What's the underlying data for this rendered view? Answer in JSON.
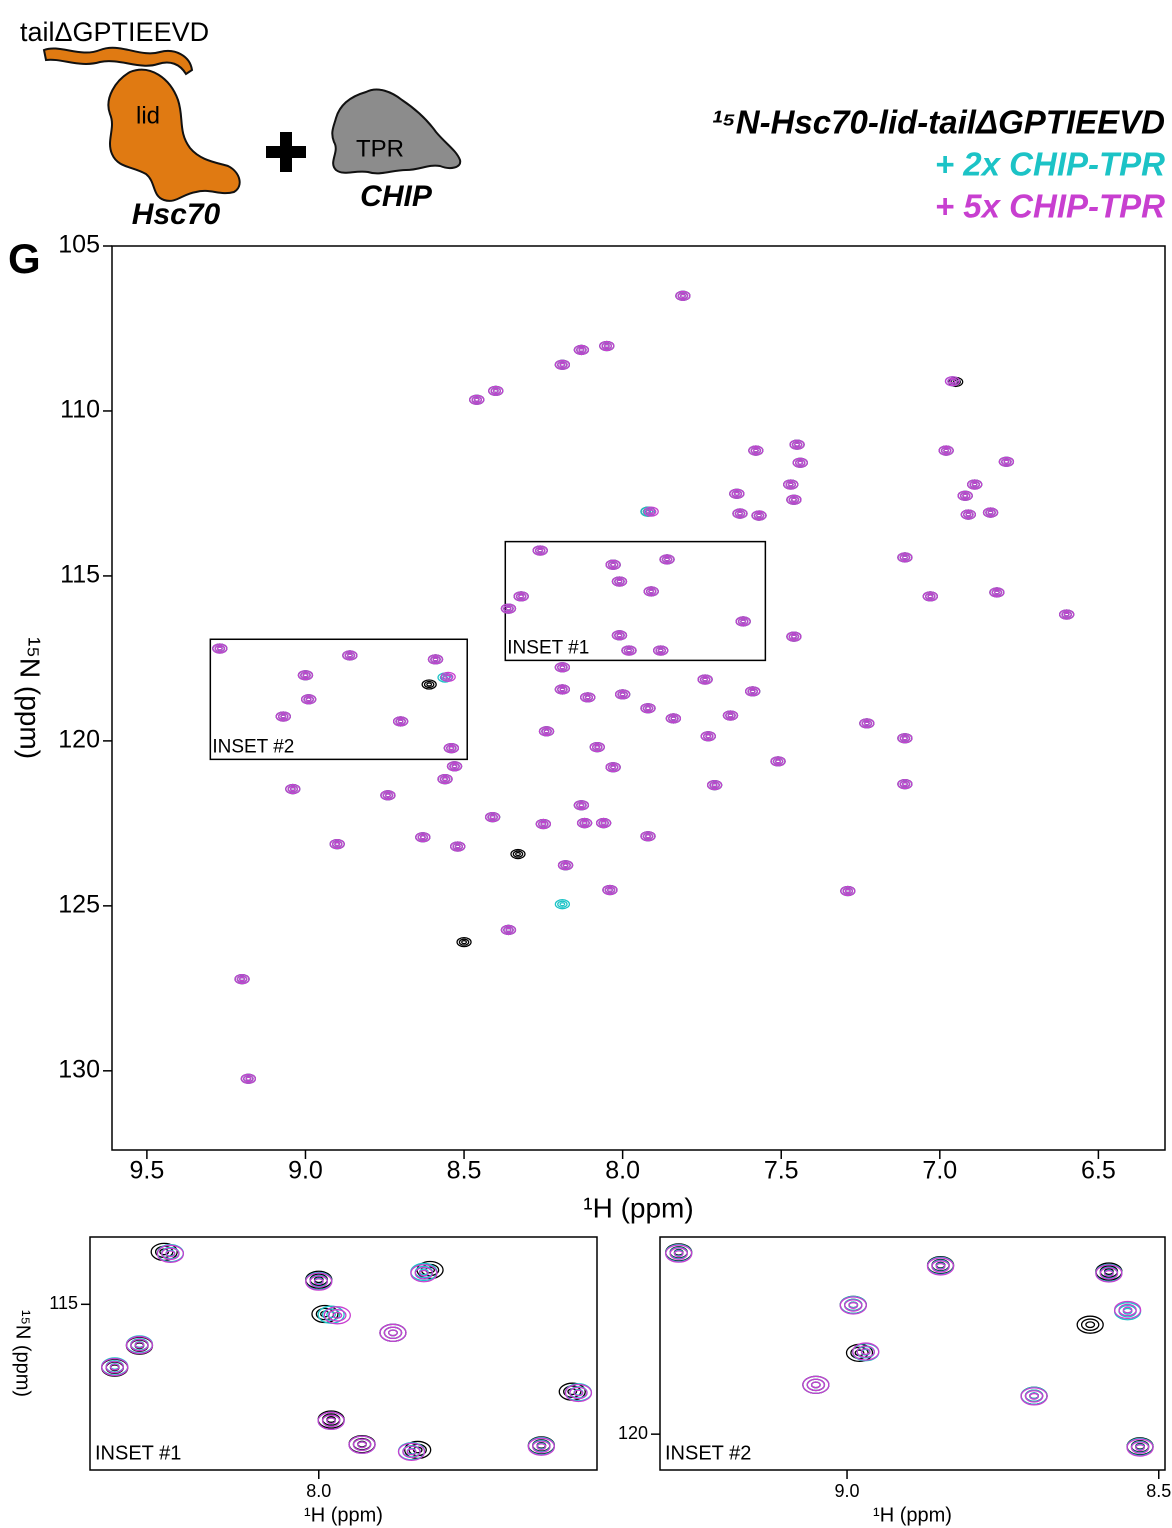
{
  "panel": "G",
  "cartoon": {
    "tail": "tailΔGPTIEEVD",
    "lid": "lid",
    "hsc70": "Hsc70",
    "tpr": "TPR",
    "chip": "CHIP"
  },
  "chart_data": [
    {
      "type": "scatter",
      "xlabel": "¹H (ppm)",
      "ylabel": "¹⁵N (ppm)",
      "legend": "upper right",
      "xlim": [
        9.61,
        6.29
      ],
      "ylim": [
        132.4,
        105
      ],
      "xticks": [
        9.5,
        {
          "value": 9,
          "label": "9.0"
        },
        8.5,
        {
          "value": 8,
          "label": "8.0"
        },
        7.5,
        {
          "value": 7,
          "label": "7.0"
        },
        6.5
      ],
      "yticks": [
        105,
        110,
        115,
        120,
        125,
        130
      ],
      "regions": [
        {
          "label": "INSET #1",
          "x": [
            8.37,
            7.55
          ],
          "y": [
            113.96,
            117.56
          ]
        },
        {
          "label": "INSET #2",
          "x": [
            9.3,
            8.49
          ],
          "y": [
            116.92,
            120.56
          ]
        }
      ],
      "series": [
        {
          "name": "¹⁵N-Hsc70-lid-tailΔGPTIEEVD",
          "color": "#000000",
          "x": [
            7.81,
            8.19,
            8.13,
            8.05,
            8.4,
            8.46,
            6.95,
            7.58,
            7.45,
            7.44,
            6.98,
            6.79,
            7.47,
            7.64,
            6.89,
            6.92,
            7.92,
            7.63,
            7.57,
            7.46,
            6.91,
            6.84,
            7.11,
            8.26,
            8.03,
            7.86,
            8.01,
            8.32,
            8.36,
            7.91,
            7.62,
            7.03,
            6.82,
            6.6,
            7.46,
            9.27,
            8.86,
            8.59,
            9.0,
            8.61,
            8.01,
            7.98,
            7.88,
            8.19,
            7.74,
            8.19,
            8.11,
            8.0,
            7.92,
            7.59,
            8.99,
            9.07,
            8.7,
            7.84,
            7.66,
            7.23,
            7.11,
            7.73,
            8.24,
            8.08,
            8.54,
            8.53,
            8.03,
            7.51,
            7.71,
            7.11,
            9.04,
            8.74,
            8.56,
            8.13,
            8.41,
            8.12,
            8.25,
            8.06,
            7.92,
            8.63,
            8.9,
            8.52,
            8.33,
            8.18,
            8.04,
            7.29,
            8.36,
            8.5,
            9.2,
            9.18
          ],
          "values": [
            106.51,
            108.6,
            108.15,
            108.03,
            109.39,
            109.66,
            109.12,
            111.2,
            111.02,
            111.57,
            111.2,
            111.54,
            112.23,
            112.51,
            112.23,
            112.57,
            113.05,
            113.11,
            113.17,
            112.69,
            113.14,
            113.08,
            114.44,
            114.23,
            114.66,
            114.5,
            115.17,
            115.62,
            115.99,
            115.47,
            116.38,
            115.62,
            115.5,
            116.17,
            116.84,
            117.2,
            117.41,
            117.53,
            118.01,
            118.29,
            116.8,
            117.26,
            117.26,
            117.77,
            118.14,
            118.44,
            118.68,
            118.59,
            119.01,
            118.5,
            118.74,
            119.26,
            119.41,
            119.32,
            119.23,
            119.47,
            119.92,
            119.86,
            119.71,
            120.19,
            120.22,
            120.77,
            120.8,
            120.62,
            121.34,
            121.31,
            121.46,
            121.65,
            121.16,
            121.95,
            122.31,
            122.49,
            122.52,
            122.49,
            122.89,
            122.92,
            123.13,
            123.2,
            123.43,
            123.77,
            124.52,
            124.55,
            125.73,
            126.1,
            127.22,
            130.24
          ]
        },
        {
          "name": "+ 2x CHIP-TPR",
          "color": "#1cc3c6",
          "x": [
            7.81,
            8.19,
            8.13,
            8.05,
            8.4,
            8.46,
            6.96,
            7.58,
            7.45,
            7.44,
            6.98,
            6.79,
            7.47,
            7.64,
            6.89,
            6.92,
            7.92,
            7.63,
            7.57,
            7.46,
            6.91,
            6.84,
            7.11,
            8.26,
            8.03,
            7.86,
            8.01,
            8.32,
            8.36,
            7.91,
            7.62,
            7.03,
            6.82,
            6.6,
            7.46,
            9.27,
            8.86,
            8.59,
            9.0,
            8.56,
            8.01,
            7.98,
            7.88,
            8.19,
            7.74,
            8.19,
            8.11,
            8.0,
            7.92,
            7.59,
            8.99,
            9.07,
            8.7,
            7.84,
            7.66,
            7.23,
            7.11,
            7.73,
            8.24,
            8.08,
            8.54,
            8.53,
            8.03,
            7.51,
            7.71,
            7.11,
            9.04,
            8.74,
            8.56,
            8.13,
            8.41,
            8.12,
            8.25,
            8.06,
            7.92,
            8.63,
            8.9,
            8.52,
            8.18,
            8.04,
            7.29,
            8.36,
            9.2,
            9.18,
            8.19
          ],
          "values": [
            106.51,
            108.6,
            108.15,
            108.03,
            109.39,
            109.66,
            109.1,
            111.2,
            111.02,
            111.57,
            111.2,
            111.54,
            112.23,
            112.51,
            112.23,
            112.57,
            113.05,
            113.11,
            113.17,
            112.69,
            113.14,
            113.08,
            114.44,
            114.23,
            114.66,
            114.5,
            115.17,
            115.62,
            115.99,
            115.47,
            116.38,
            115.62,
            115.5,
            116.17,
            116.84,
            117.2,
            117.41,
            117.53,
            118.01,
            118.08,
            116.8,
            117.26,
            117.26,
            117.77,
            118.14,
            118.44,
            118.68,
            118.59,
            119.01,
            118.5,
            118.74,
            119.26,
            119.41,
            119.32,
            119.23,
            119.47,
            119.92,
            119.86,
            119.71,
            120.19,
            120.22,
            120.77,
            120.8,
            120.62,
            121.34,
            121.31,
            121.46,
            121.65,
            121.16,
            121.95,
            122.31,
            122.49,
            122.52,
            122.49,
            122.89,
            122.92,
            123.13,
            123.2,
            123.77,
            124.52,
            124.55,
            125.73,
            127.22,
            130.24,
            124.95
          ]
        },
        {
          "name": "+ 5x CHIP-TPR",
          "color": "#c83fd0",
          "x": [
            7.81,
            8.19,
            8.13,
            8.05,
            8.4,
            8.46,
            6.96,
            7.58,
            7.45,
            7.44,
            6.98,
            6.79,
            7.47,
            7.64,
            6.89,
            6.92,
            7.91,
            7.63,
            7.57,
            7.46,
            6.91,
            6.84,
            7.11,
            8.26,
            8.03,
            7.86,
            8.01,
            8.32,
            8.36,
            7.91,
            7.62,
            7.03,
            6.82,
            6.6,
            7.46,
            9.27,
            8.86,
            8.59,
            9.0,
            8.55,
            8.01,
            7.98,
            7.88,
            8.19,
            7.74,
            8.19,
            8.11,
            8.0,
            7.92,
            7.59,
            8.99,
            9.07,
            8.7,
            7.84,
            7.66,
            7.23,
            7.11,
            7.73,
            8.24,
            8.08,
            8.54,
            8.53,
            8.03,
            7.51,
            7.71,
            7.11,
            9.04,
            8.74,
            8.56,
            8.13,
            8.41,
            8.12,
            8.25,
            8.06,
            7.92,
            8.63,
            8.9,
            8.52,
            8.18,
            8.04,
            7.29,
            8.36,
            9.2,
            9.18
          ],
          "values": [
            106.51,
            108.6,
            108.15,
            108.03,
            109.39,
            109.66,
            109.1,
            111.2,
            111.02,
            111.57,
            111.2,
            111.54,
            112.23,
            112.51,
            112.23,
            112.57,
            113.05,
            113.11,
            113.17,
            112.69,
            113.14,
            113.08,
            114.44,
            114.23,
            114.66,
            114.5,
            115.17,
            115.62,
            115.99,
            115.47,
            116.38,
            115.62,
            115.5,
            116.17,
            116.84,
            117.2,
            117.41,
            117.53,
            118.01,
            118.06,
            116.8,
            117.26,
            117.26,
            117.77,
            118.14,
            118.44,
            118.68,
            118.59,
            119.01,
            118.5,
            118.74,
            119.26,
            119.41,
            119.32,
            119.23,
            119.47,
            119.92,
            119.86,
            119.71,
            120.19,
            120.22,
            120.77,
            120.8,
            120.62,
            121.34,
            121.31,
            121.46,
            121.65,
            121.16,
            121.95,
            122.31,
            122.49,
            122.52,
            122.49,
            122.89,
            122.92,
            123.13,
            123.2,
            123.77,
            124.52,
            124.55,
            125.73,
            127.22,
            130.24
          ]
        }
      ]
    },
    {
      "type": "scatter",
      "title": "INSET #1",
      "xlabel": "¹H (ppm)",
      "ylabel": "¹⁵N (ppm)",
      "xlim": [
        8.37,
        7.55
      ],
      "ylim": [
        117.56,
        113.96
      ],
      "xticks": [
        {
          "value": 8,
          "label": "8.0"
        }
      ],
      "yticks": [
        115
      ],
      "series": [
        {
          "color": "#000000",
          "x": [
            8.25,
            8.0,
            7.82,
            7.99,
            7.88,
            8.29,
            8.33,
            7.59,
            7.98,
            7.93,
            7.84,
            7.64
          ],
          "values": [
            114.19,
            114.62,
            114.47,
            115.15,
            115.44,
            115.64,
            115.98,
            116.35,
            116.78,
            117.16,
            117.25,
            117.18
          ]
        },
        {
          "color": "#1cc3c6",
          "x": [
            8.24,
            8.0,
            7.83,
            7.98,
            7.88,
            8.29,
            8.33,
            7.58,
            7.98,
            7.93,
            7.85,
            7.64
          ],
          "values": [
            114.21,
            114.64,
            114.5,
            115.16,
            115.44,
            115.62,
            115.96,
            116.36,
            116.8,
            117.17,
            117.27,
            117.19
          ]
        },
        {
          "color": "#c83fd0",
          "x": [
            8.24,
            8.0,
            7.83,
            7.97,
            7.88,
            8.29,
            8.33,
            7.58,
            7.98,
            7.93,
            7.85,
            7.64
          ],
          "values": [
            114.22,
            114.65,
            114.52,
            115.17,
            115.44,
            115.63,
            115.97,
            116.37,
            116.8,
            117.17,
            117.28,
            117.2
          ]
        }
      ]
    },
    {
      "type": "scatter",
      "title": "INSET #2",
      "xlabel": "¹H (ppm)",
      "xlim": [
        9.3,
        8.49
      ],
      "ylim": [
        120.56,
        116.92
      ],
      "xticks": [
        {
          "value": 9,
          "label": "9.0"
        },
        8.5
      ],
      "yticks": [
        120
      ],
      "series": [
        {
          "color": "#000000",
          "x": [
            9.27,
            8.85,
            8.58,
            8.99,
            8.61,
            8.98,
            9.05,
            8.7,
            8.53
          ],
          "values": [
            117.16,
            117.36,
            117.46,
            117.98,
            118.29,
            118.73,
            119.23,
            119.4,
            120.19
          ]
        },
        {
          "color": "#1cc3c6",
          "x": [
            9.27,
            8.85,
            8.58,
            8.99,
            8.55,
            8.97,
            9.05,
            8.7,
            8.53
          ],
          "values": [
            117.17,
            117.37,
            117.48,
            117.98,
            118.08,
            118.72,
            119.23,
            119.4,
            120.2
          ]
        },
        {
          "color": "#c83fd0",
          "x": [
            9.27,
            8.85,
            8.58,
            8.99,
            8.55,
            8.97,
            9.05,
            8.7,
            8.53
          ],
          "values": [
            117.18,
            117.38,
            117.49,
            117.99,
            118.06,
            118.71,
            119.23,
            119.41,
            120.21
          ]
        }
      ]
    }
  ]
}
